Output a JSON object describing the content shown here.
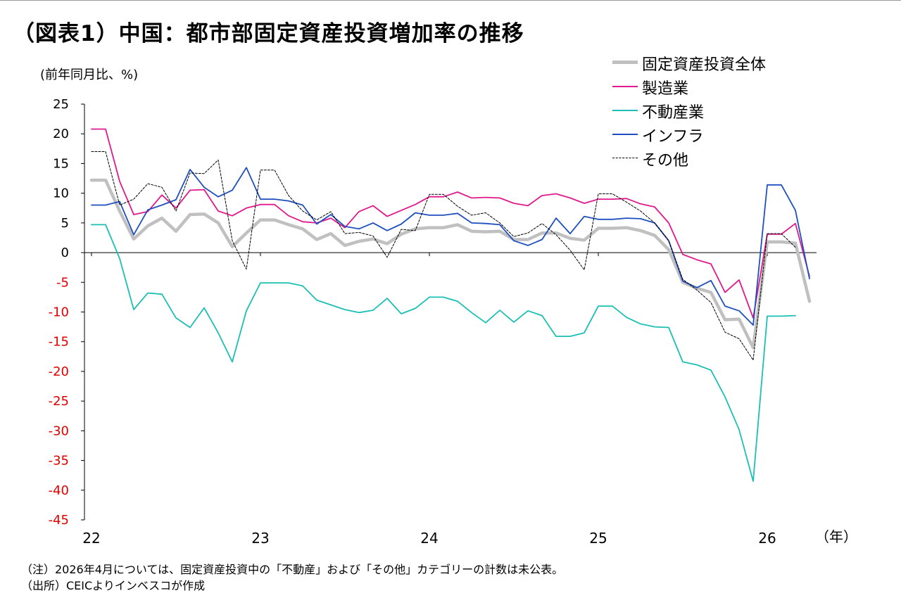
{
  "title": "（図表1）中国：都市部固定資産投資増加率の推移",
  "notes": [
    "（注）2026年4月については、固定資産投資中の「不動産」および「その他」カテゴリーの計数は未公表。",
    "（出所）CEICよりインベスコが作成"
  ],
  "colors": {
    "total": "#c0c0c0",
    "manufacturing": "#e0198c",
    "real_estate": "#1bbfb4",
    "infrastructure": "#1f4fbf",
    "other": "#000000",
    "negative_tick": "#e00000"
  },
  "chart_data": {
    "type": "line",
    "ylabel": "(前年同月比、%)",
    "xlabel": "（年）",
    "ylim": [
      -45,
      25
    ],
    "y_ticks": [
      "25",
      "20",
      "15",
      "10",
      "5",
      "0",
      "-5",
      "-10",
      "-15",
      "-20",
      "-25",
      "-30",
      "-35",
      "-40",
      "-45"
    ],
    "x_ticks": [
      "22",
      "23",
      "24",
      "25",
      "26"
    ],
    "x_tick_positions": [
      0,
      12,
      24,
      36,
      48
    ],
    "legend_position": "top-right",
    "grid": false,
    "series": [
      {
        "key": "total",
        "name": "固定資産投資全体",
        "values": [
          12.2,
          12.2,
          7.0,
          2.3,
          4.5,
          5.8,
          3.6,
          6.4,
          6.5,
          5.0,
          1.0,
          3.3,
          5.5,
          5.5,
          4.7,
          4.0,
          2.2,
          3.2,
          1.2,
          1.9,
          2.3,
          1.5,
          3.1,
          4.0,
          4.2,
          4.2,
          4.7,
          3.6,
          3.5,
          3.6,
          2.2,
          2.2,
          3.3,
          3.3,
          2.4,
          2.1,
          4.1,
          4.1,
          4.2,
          3.7,
          2.9,
          0.5,
          -5.0,
          -6.0,
          -6.7,
          -11.3,
          -11.2,
          -16.0,
          1.8,
          1.8,
          1.6,
          -8.2
        ]
      },
      {
        "key": "manufacturing",
        "name": "製造業",
        "values": [
          20.8,
          20.8,
          12.0,
          6.4,
          6.9,
          9.7,
          7.5,
          10.5,
          10.6,
          7.0,
          6.2,
          7.5,
          8.1,
          8.1,
          6.2,
          5.2,
          5.0,
          5.8,
          4.2,
          6.9,
          7.9,
          6.1,
          7.1,
          8.1,
          9.4,
          9.4,
          10.2,
          9.2,
          9.3,
          9.2,
          8.3,
          7.9,
          9.6,
          9.9,
          9.2,
          8.3,
          9.0,
          9.0,
          9.1,
          8.2,
          7.7,
          5.0,
          -0.3,
          -1.2,
          -1.9,
          -6.7,
          -4.6,
          -11.0,
          3.1,
          3.1,
          4.9,
          -4.0
        ]
      },
      {
        "key": "real_estate",
        "name": "不動産業",
        "values": [
          4.7,
          4.7,
          -1.0,
          -9.6,
          -6.8,
          -7.0,
          -11.0,
          -12.6,
          -9.3,
          -13.5,
          -18.4,
          -9.8,
          -5.1,
          -5.1,
          -5.1,
          -5.6,
          -8.0,
          -8.8,
          -9.6,
          -10.1,
          -9.7,
          -7.7,
          -10.3,
          -9.4,
          -7.5,
          -7.5,
          -8.2,
          -10.1,
          -11.8,
          -9.7,
          -11.7,
          -9.8,
          -10.6,
          -14.1,
          -14.1,
          -13.5,
          -9.0,
          -9.0,
          -10.9,
          -12.0,
          -12.5,
          -12.6,
          -18.4,
          -18.9,
          -19.8,
          -24.3,
          -29.8,
          -38.5,
          -10.7,
          -10.7,
          -10.6
        ]
      },
      {
        "key": "infrastructure",
        "name": "インフラ",
        "values": [
          8.0,
          8.0,
          8.6,
          3.0,
          7.2,
          8.0,
          8.9,
          14.0,
          11.0,
          9.4,
          10.5,
          14.3,
          9.0,
          9.0,
          8.7,
          8.0,
          4.8,
          6.4,
          4.4,
          4.0,
          5.0,
          3.7,
          4.8,
          6.7,
          6.3,
          6.3,
          6.6,
          5.0,
          4.9,
          4.7,
          2.0,
          1.2,
          2.2,
          5.8,
          3.2,
          6.1,
          5.6,
          5.6,
          5.8,
          5.7,
          5.0,
          2.0,
          -4.8,
          -5.9,
          -4.7,
          -9.0,
          -9.8,
          -12.2,
          11.4,
          11.4,
          7.1,
          -4.4
        ]
      },
      {
        "key": "other",
        "name": "その他",
        "values": [
          17.0,
          17.0,
          8.0,
          9.0,
          11.6,
          11.0,
          7.0,
          13.4,
          13.3,
          15.6,
          2.0,
          -2.8,
          13.9,
          13.9,
          9.6,
          7.0,
          5.5,
          6.9,
          3.2,
          3.4,
          2.8,
          -0.8,
          3.9,
          3.7,
          9.8,
          9.8,
          7.8,
          6.3,
          6.7,
          5.0,
          2.7,
          3.3,
          4.9,
          3.0,
          0.4,
          -2.9,
          9.9,
          9.9,
          8.5,
          7.0,
          5.0,
          2.0,
          -4.5,
          -6.3,
          -8.4,
          -13.4,
          -14.5,
          -18.1,
          3.2,
          3.2,
          0.9
        ]
      }
    ]
  }
}
